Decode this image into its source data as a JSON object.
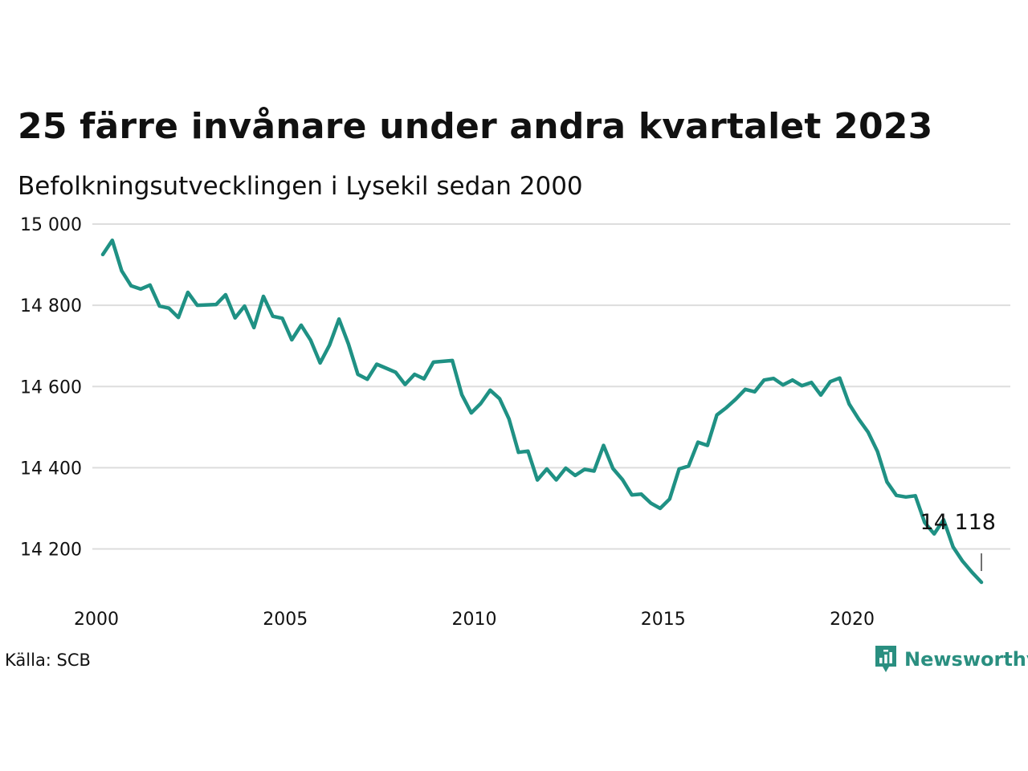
{
  "title": "25 färre invånare under andra kvartalet 2023",
  "subtitle": "Befolkningsutvecklingen i Lysekil sedan 2000",
  "source": "Källa: SCB",
  "brand": "Newsworthy",
  "colors": {
    "line": "#1f9184",
    "grid": "#dddddd",
    "brand": "#2a8f80"
  },
  "chart_data": {
    "type": "line",
    "x_ticks": [
      2000,
      2005,
      2010,
      2015,
      2020
    ],
    "y_ticks": [
      14200,
      14400,
      14600,
      14800,
      15000
    ],
    "y_tick_labels": [
      "14 200",
      "14 400",
      "14 600",
      "14 800",
      "15 000"
    ],
    "xlim": [
      2000,
      2023.25
    ],
    "ylim": [
      14120,
      15000
    ],
    "grid": true,
    "annotation": {
      "x": 2023.25,
      "value": 14118,
      "label": "14 118"
    },
    "x": [
      2000,
      2000.25,
      2000.5,
      2000.75,
      2001,
      2001.25,
      2001.5,
      2001.75,
      2002,
      2002.25,
      2002.5,
      2002.75,
      2003,
      2003.25,
      2003.5,
      2003.75,
      2004,
      2004.25,
      2004.5,
      2004.75,
      2005,
      2005.25,
      2005.5,
      2005.75,
      2006,
      2006.25,
      2006.5,
      2006.75,
      2007,
      2007.25,
      2007.5,
      2007.75,
      2008,
      2008.25,
      2008.5,
      2008.75,
      2009,
      2009.25,
      2009.5,
      2009.75,
      2010,
      2010.25,
      2010.5,
      2010.75,
      2011,
      2011.25,
      2011.5,
      2011.75,
      2012,
      2012.25,
      2012.5,
      2012.75,
      2013,
      2013.25,
      2013.5,
      2013.75,
      2014,
      2014.25,
      2014.5,
      2014.75,
      2015,
      2015.25,
      2015.5,
      2015.75,
      2016,
      2016.25,
      2016.5,
      2016.75,
      2017,
      2017.25,
      2017.5,
      2017.75,
      2018,
      2018.25,
      2018.5,
      2018.75,
      2019,
      2019.25,
      2019.5,
      2019.75,
      2020,
      2020.25,
      2020.5,
      2020.75,
      2021,
      2021.25,
      2021.5,
      2021.75,
      2022,
      2022.25,
      2022.5,
      2022.75,
      2023,
      2023.25
    ],
    "values": [
      14925,
      14960,
      14885,
      14848,
      14840,
      14850,
      14798,
      14793,
      14770,
      14832,
      14800,
      14801,
      14802,
      14826,
      14769,
      14798,
      14745,
      14822,
      14773,
      14768,
      14715,
      14751,
      14714,
      14658,
      14702,
      14766,
      14705,
      14630,
      14618,
      14655,
      14645,
      14635,
      14605,
      14630,
      14619,
      14660,
      14662,
      14664,
      14580,
      14535,
      14558,
      14591,
      14570,
      14520,
      14438,
      14441,
      14370,
      14397,
      14370,
      14399,
      14381,
      14396,
      14392,
      14455,
      14398,
      14371,
      14333,
      14335,
      14313,
      14300,
      14323,
      14397,
      14404,
      14463,
      14455,
      14530,
      14548,
      14569,
      14593,
      14587,
      14616,
      14620,
      14604,
      14616,
      14602,
      14610,
      14579,
      14612,
      14621,
      14557,
      14520,
      14488,
      14440,
      14365,
      14332,
      14328,
      14331,
      14265,
      14237,
      14272,
      14205,
      14170,
      14143,
      14118
    ]
  }
}
